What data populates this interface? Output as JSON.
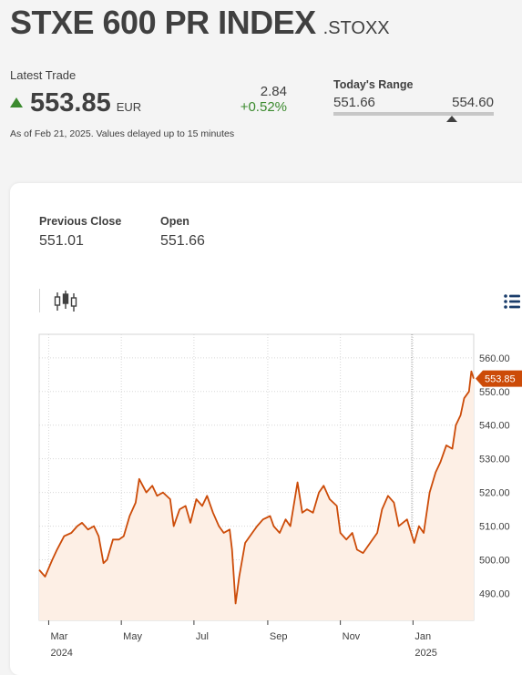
{
  "header": {
    "title": "STXE 600 PR INDEX",
    "ric": ".STOXX"
  },
  "quote": {
    "latest_trade_label": "Latest Trade",
    "price": "553.85",
    "currency": "EUR",
    "change_abs": "2.84",
    "change_pct": "+0.52%",
    "as_of": "As of Feb 21, 2025. Values delayed up to 15 minutes",
    "up_color": "#3b8a2e"
  },
  "range": {
    "label": "Today's Range",
    "low": "551.66",
    "high": "554.60"
  },
  "stats": {
    "previous_close_label": "Previous Close",
    "previous_close": "551.01",
    "open_label": "Open",
    "open": "551.66"
  },
  "toolbar": {
    "chart_type_icon": "candlestick-icon",
    "menu_icon": "list-menu-icon"
  },
  "chart_data": {
    "type": "area",
    "title": "",
    "xlabel": "",
    "ylabel": "",
    "line_color": "#cc4b08",
    "fill_color": "#fdefe5",
    "current_value_label": "553.85",
    "current_value": 553.85,
    "ylim": [
      482,
      567
    ],
    "yticks": [
      490,
      500,
      510,
      520,
      530,
      540,
      550,
      560
    ],
    "ytick_labels": [
      "490.00",
      "500.00",
      "510.00",
      "520.00",
      "530.00",
      "540.00",
      "550.00",
      "560.00"
    ],
    "xlim": [
      "2024-02-22",
      "2025-02-21"
    ],
    "xticks": [
      {
        "date": "2024-03-01",
        "month": "Mar",
        "year": "2024"
      },
      {
        "date": "2024-05-01",
        "month": "May",
        "year": ""
      },
      {
        "date": "2024-07-01",
        "month": "Jul",
        "year": ""
      },
      {
        "date": "2024-09-01",
        "month": "Sep",
        "year": ""
      },
      {
        "date": "2024-11-01",
        "month": "Nov",
        "year": ""
      },
      {
        "date": "2025-01-01",
        "month": "Jan",
        "year": "2025"
      }
    ],
    "series": [
      {
        "points": [
          [
            "2024-02-22",
            497
          ],
          [
            "2024-02-27",
            495
          ],
          [
            "2024-03-04",
            500
          ],
          [
            "2024-03-08",
            503
          ],
          [
            "2024-03-14",
            507
          ],
          [
            "2024-03-20",
            508
          ],
          [
            "2024-03-25",
            510
          ],
          [
            "2024-03-29",
            511
          ],
          [
            "2024-04-03",
            509
          ],
          [
            "2024-04-08",
            510
          ],
          [
            "2024-04-12",
            507
          ],
          [
            "2024-04-16",
            499
          ],
          [
            "2024-04-19",
            500
          ],
          [
            "2024-04-24",
            506
          ],
          [
            "2024-04-29",
            506
          ],
          [
            "2024-05-03",
            507
          ],
          [
            "2024-05-08",
            513
          ],
          [
            "2024-05-13",
            517
          ],
          [
            "2024-05-16",
            524
          ],
          [
            "2024-05-22",
            520
          ],
          [
            "2024-05-27",
            522
          ],
          [
            "2024-05-31",
            519
          ],
          [
            "2024-06-05",
            520
          ],
          [
            "2024-06-11",
            518
          ],
          [
            "2024-06-14",
            510
          ],
          [
            "2024-06-19",
            515
          ],
          [
            "2024-06-24",
            516
          ],
          [
            "2024-06-28",
            511
          ],
          [
            "2024-07-03",
            518
          ],
          [
            "2024-07-08",
            516
          ],
          [
            "2024-07-12",
            519
          ],
          [
            "2024-07-17",
            514
          ],
          [
            "2024-07-22",
            510
          ],
          [
            "2024-07-26",
            508
          ],
          [
            "2024-07-31",
            509
          ],
          [
            "2024-08-02",
            503
          ],
          [
            "2024-08-05",
            487
          ],
          [
            "2024-08-08",
            495
          ],
          [
            "2024-08-13",
            505
          ],
          [
            "2024-08-19",
            508
          ],
          [
            "2024-08-23",
            510
          ],
          [
            "2024-08-28",
            512
          ],
          [
            "2024-09-03",
            513
          ],
          [
            "2024-09-06",
            510
          ],
          [
            "2024-09-11",
            508
          ],
          [
            "2024-09-16",
            512
          ],
          [
            "2024-09-20",
            510
          ],
          [
            "2024-09-26",
            523
          ],
          [
            "2024-09-30",
            514
          ],
          [
            "2024-10-04",
            515
          ],
          [
            "2024-10-09",
            514
          ],
          [
            "2024-10-14",
            520
          ],
          [
            "2024-10-18",
            522
          ],
          [
            "2024-10-23",
            518
          ],
          [
            "2024-10-29",
            516
          ],
          [
            "2024-11-01",
            508
          ],
          [
            "2024-11-06",
            506
          ],
          [
            "2024-11-11",
            508
          ],
          [
            "2024-11-15",
            503
          ],
          [
            "2024-11-20",
            502
          ],
          [
            "2024-11-26",
            505
          ],
          [
            "2024-12-02",
            508
          ],
          [
            "2024-12-06",
            515
          ],
          [
            "2024-12-11",
            519
          ],
          [
            "2024-12-16",
            517
          ],
          [
            "2024-12-20",
            510
          ],
          [
            "2024-12-27",
            512
          ],
          [
            "2025-01-02",
            505
          ],
          [
            "2025-01-06",
            510
          ],
          [
            "2025-01-10",
            508
          ],
          [
            "2025-01-15",
            520
          ],
          [
            "2025-01-20",
            526
          ],
          [
            "2025-01-24",
            529
          ],
          [
            "2025-01-29",
            534
          ],
          [
            "2025-02-03",
            533
          ],
          [
            "2025-02-06",
            540
          ],
          [
            "2025-02-10",
            543
          ],
          [
            "2025-02-13",
            548
          ],
          [
            "2025-02-17",
            550
          ],
          [
            "2025-02-19",
            556
          ],
          [
            "2025-02-21",
            553.85
          ]
        ]
      }
    ]
  }
}
